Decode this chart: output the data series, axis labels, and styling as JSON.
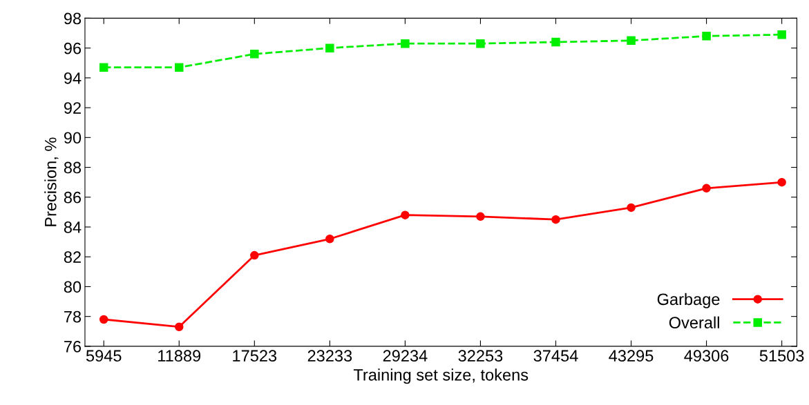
{
  "chart_data": {
    "type": "line",
    "xlabel": "Training set size, tokens",
    "ylabel": "Precision, %",
    "categories": [
      "5945",
      "11889",
      "17523",
      "23233",
      "29234",
      "32253",
      "37454",
      "43295",
      "49306",
      "51503"
    ],
    "series": [
      {
        "name": "Garbage",
        "color": "#ff0000",
        "marker": "circle",
        "line_style": "solid",
        "values": [
          77.8,
          77.3,
          82.1,
          83.2,
          84.8,
          84.7,
          84.5,
          85.3,
          86.6,
          87.0
        ]
      },
      {
        "name": "Overall",
        "color": "#00ee00",
        "marker": "square",
        "line_style": "dashed",
        "values": [
          94.7,
          94.7,
          95.6,
          96.0,
          96.3,
          96.3,
          96.4,
          96.5,
          96.8,
          96.9
        ]
      }
    ],
    "ylim": [
      76,
      98
    ],
    "yticks": [
      76,
      78,
      80,
      82,
      84,
      86,
      88,
      90,
      92,
      94,
      96,
      98
    ],
    "grid": false,
    "legend": "bottom right"
  }
}
